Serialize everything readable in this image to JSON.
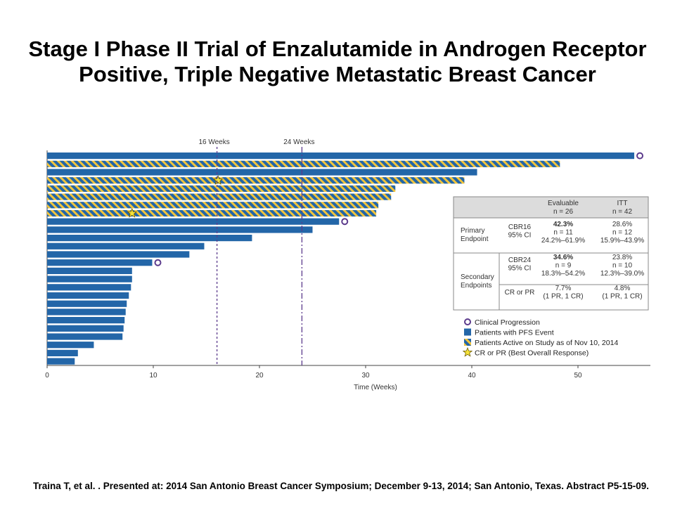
{
  "slide": {
    "title": "Stage I Phase II Trial of Enzalutamide in Androgen Receptor Positive, Triple Negative Metastatic Breast Cancer",
    "citation": "Traina T, et al. . Presented at: 2014 San Antonio Breast Cancer Symposium; December 9-13, 2014; San Antonio, Texas. Abstract P5-15-09."
  },
  "colors": {
    "bar": "#2366a8",
    "stripe": "#f2c43a",
    "progression": "#5b3a8c",
    "star": "#f6e33b",
    "ref_line": "#5b3a8c",
    "table_header": "#dcdcdc"
  },
  "chart_data": {
    "type": "bar",
    "orientation": "horizontal",
    "xlabel": "Time (Weeks)",
    "xlim": [
      0,
      57
    ],
    "xticks": [
      0,
      10,
      20,
      30,
      40,
      50
    ],
    "reference_lines": [
      {
        "x": 16,
        "label": "16 Weeks",
        "style": "dotted"
      },
      {
        "x": 24,
        "label": "24 Weeks",
        "style": "dashdot"
      }
    ],
    "patients": [
      {
        "weeks": 55.3,
        "status": "pfs_event",
        "progression": true
      },
      {
        "weeks": 48.3,
        "status": "active"
      },
      {
        "weeks": 40.5,
        "status": "pfs_event"
      },
      {
        "weeks": 39.3,
        "status": "active",
        "response": true,
        "response_at": 16.1
      },
      {
        "weeks": 32.8,
        "status": "active"
      },
      {
        "weeks": 32.4,
        "status": "active"
      },
      {
        "weeks": 31.2,
        "status": "active"
      },
      {
        "weeks": 31.0,
        "status": "active",
        "response": true,
        "response_at": 8.0
      },
      {
        "weeks": 27.5,
        "status": "pfs_event",
        "progression": true
      },
      {
        "weeks": 25.0,
        "status": "pfs_event"
      },
      {
        "weeks": 19.3,
        "status": "pfs_event"
      },
      {
        "weeks": 14.8,
        "status": "pfs_event"
      },
      {
        "weeks": 13.4,
        "status": "pfs_event"
      },
      {
        "weeks": 9.9,
        "status": "pfs_event",
        "progression": true
      },
      {
        "weeks": 8.0,
        "status": "pfs_event"
      },
      {
        "weeks": 8.0,
        "status": "pfs_event"
      },
      {
        "weeks": 7.9,
        "status": "pfs_event"
      },
      {
        "weeks": 7.7,
        "status": "pfs_event"
      },
      {
        "weeks": 7.5,
        "status": "pfs_event"
      },
      {
        "weeks": 7.4,
        "status": "pfs_event"
      },
      {
        "weeks": 7.3,
        "status": "pfs_event"
      },
      {
        "weeks": 7.2,
        "status": "pfs_event"
      },
      {
        "weeks": 7.1,
        "status": "pfs_event"
      },
      {
        "weeks": 4.4,
        "status": "pfs_event"
      },
      {
        "weeks": 2.9,
        "status": "pfs_event"
      },
      {
        "weeks": 2.6,
        "status": "pfs_event"
      }
    ],
    "legend": [
      {
        "symbol": "circle",
        "label": "Clinical Progression"
      },
      {
        "symbol": "bar",
        "label": "Patients with PFS Event"
      },
      {
        "symbol": "striped",
        "label": "Patients Active on Study as of Nov 10, 2014"
      },
      {
        "symbol": "star",
        "label": "CR or PR (Best Overall Response)"
      }
    ],
    "table": {
      "headers": {
        "evaluable": [
          "Evaluable",
          "n = 26"
        ],
        "itt": [
          "ITT",
          "n = 42"
        ]
      },
      "rows": [
        {
          "group": [
            "Primary",
            "Endpoint"
          ],
          "metric": [
            "CBR16",
            "95% CI"
          ],
          "evaluable": [
            "42.3%",
            "n = 11",
            "24.2%–61.9%"
          ],
          "itt": [
            "28.6%",
            "n = 12",
            "15.9%–43.9%"
          ]
        },
        {
          "group": [
            "Secondary",
            "Endpoints"
          ],
          "metric": [
            "CBR24",
            "95% CI"
          ],
          "evaluable": [
            "34.6%",
            "n = 9",
            "18.3%–54.2%"
          ],
          "itt": [
            "23.8%",
            "n = 10",
            "12.3%–39.0%"
          ]
        },
        {
          "group": [],
          "metric": [
            "CR or PR"
          ],
          "evaluable": [
            "7.7%",
            "(1 PR, 1 CR)"
          ],
          "itt": [
            "4.8%",
            "(1 PR, 1 CR)"
          ]
        }
      ]
    }
  }
}
